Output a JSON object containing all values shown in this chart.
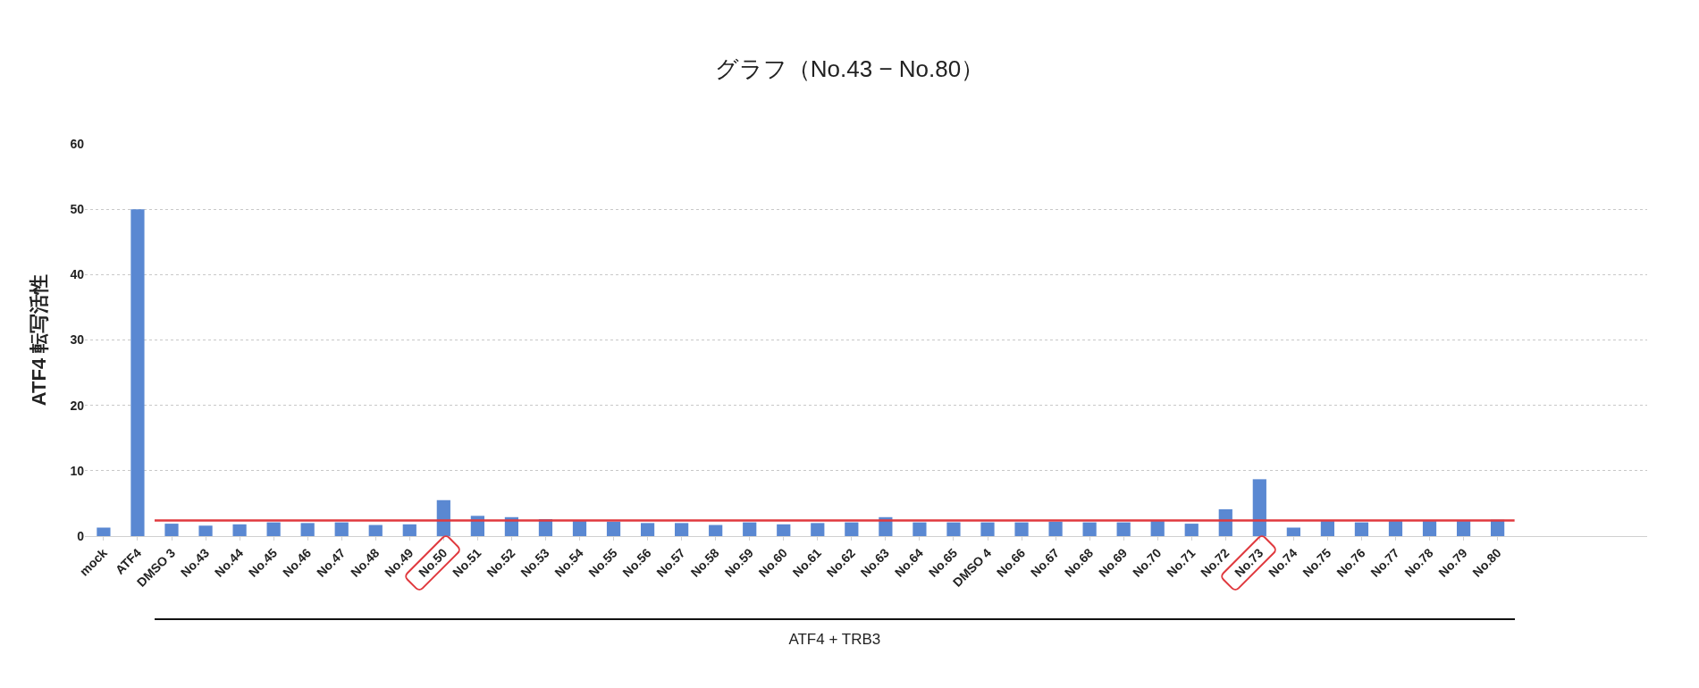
{
  "chart_data": {
    "type": "bar",
    "title": "グラフ（No.43 − No.80）",
    "ylabel": "ATF4 転写活性",
    "categories": [
      "mock",
      "ATF4",
      "DMSO 3",
      "No.43",
      "No.44",
      "No.45",
      "No.46",
      "No.47",
      "No.48",
      "No.49",
      "No.50",
      "No.51",
      "No.52",
      "No.53",
      "No.54",
      "No.55",
      "No.56",
      "No.57",
      "No.58",
      "No.59",
      "No.60",
      "No.61",
      "No.62",
      "No.63",
      "No.64",
      "No.65",
      "DMSO 4",
      "No.66",
      "No.67",
      "No.68",
      "No.69",
      "No.70",
      "No.71",
      "No.72",
      "No.73",
      "No.74",
      "No.75",
      "No.76",
      "No.77",
      "No.78",
      "No.79",
      "No.80"
    ],
    "values": [
      1.3,
      50,
      1.9,
      1.6,
      1.8,
      2.1,
      2.0,
      2.1,
      1.7,
      1.8,
      5.5,
      3.1,
      2.9,
      2.6,
      2.3,
      2.2,
      2.0,
      2.0,
      1.7,
      2.1,
      1.8,
      2.0,
      2.1,
      2.9,
      2.1,
      2.1,
      2.1,
      2.1,
      2.2,
      2.1,
      2.1,
      2.3,
      1.9,
      4.1,
      8.7,
      1.3,
      2.3,
      2.1,
      2.3,
      2.3,
      2.3,
      2.5
    ],
    "color": "#5a88d2",
    "ylim": [
      0,
      60
    ],
    "yticks": [
      0,
      10,
      20,
      30,
      40,
      50,
      60
    ],
    "grid": "y",
    "ref_lines": [
      {
        "axis": "y",
        "value": 2.4,
        "color": "#e0393e"
      }
    ],
    "annotations": [
      "ATF4 + TRB3"
    ]
  }
}
